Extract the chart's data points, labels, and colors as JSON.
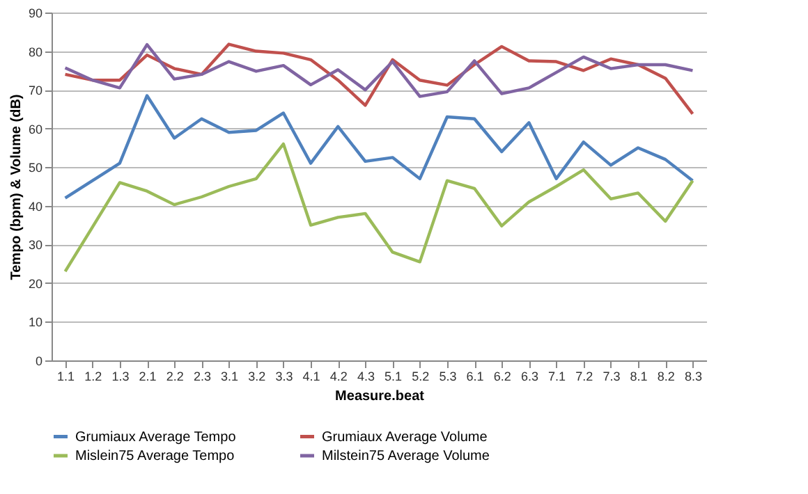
{
  "chart_data": {
    "type": "line",
    "xlabel": "Measure.beat",
    "ylabel": "Tempo (bpm) & Volume (dB)",
    "categories": [
      "1.1",
      "1.2",
      "1.3",
      "2.1",
      "2.2",
      "2.3",
      "3.1",
      "3.2",
      "3.3",
      "4.1",
      "4.2",
      "4.3",
      "5.1",
      "5.2",
      "5.3",
      "6.1",
      "6.2",
      "6.3",
      "7.1",
      "7.2",
      "7.3",
      "8.1",
      "8.2",
      "8.3"
    ],
    "series": [
      {
        "name": "Grumiaux Average Tempo",
        "color": "#4f81bd",
        "values": [
          42,
          46.5,
          51,
          68.5,
          57.5,
          62.5,
          59,
          59.5,
          64,
          51,
          60.5,
          51.5,
          52.5,
          47,
          63,
          62.5,
          54,
          61.5,
          47,
          56.5,
          50.5,
          55,
          52,
          46.5
        ]
      },
      {
        "name": "Grumiaux Average Volume",
        "color": "#c0504d",
        "values": [
          74,
          72.5,
          72.5,
          79,
          75.5,
          74,
          81.8,
          80,
          79.5,
          77.8,
          72.5,
          66,
          77.8,
          72.5,
          71.2,
          76.5,
          81.2,
          77.5,
          77.3,
          75,
          78,
          76.5,
          73,
          63.8
        ]
      },
      {
        "name": "Mislein75 Average Tempo",
        "color": "#9bbb59",
        "values": [
          23,
          34.5,
          46,
          43.8,
          40.3,
          42.3,
          45,
          47,
          56,
          35,
          37,
          38,
          28,
          25.5,
          46.5,
          44.5,
          34.8,
          41,
          45,
          49.3,
          41.8,
          43.3,
          36,
          46.5
        ]
      },
      {
        "name": "Milstein75 Average Volume",
        "color": "#8064a2",
        "values": [
          75.7,
          72.5,
          70.5,
          81.7,
          72.8,
          74,
          77.3,
          74.8,
          76.3,
          71.3,
          75.2,
          70,
          77.3,
          68.3,
          69.5,
          77.5,
          69,
          70.5,
          74.5,
          78.5,
          75.5,
          76.5,
          76.5,
          75
        ]
      }
    ],
    "ylim": [
      0,
      90
    ],
    "yticks": [
      0,
      10,
      20,
      30,
      40,
      50,
      60,
      70,
      80,
      90
    ],
    "grid": "y",
    "legend": "bottom",
    "marker": "none",
    "line_style": "solid"
  }
}
